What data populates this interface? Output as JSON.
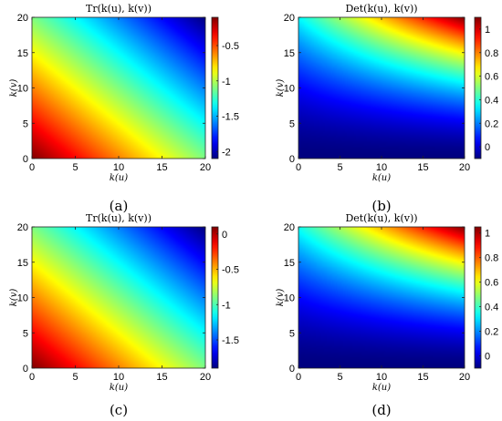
{
  "chart_data": [
    {
      "type": "heatmap",
      "panel": "a",
      "caption": "(a)",
      "title": "Tr(k(u), k(v))",
      "xlabel": "k(u)",
      "ylabel": "k(v)",
      "xlim": [
        0,
        20
      ],
      "ylim": [
        0,
        20
      ],
      "xticks": [
        "0",
        "5",
        "10",
        "15",
        "20"
      ],
      "yticks": [
        "0",
        "5",
        "10",
        "15",
        "20"
      ],
      "colormap": "jet",
      "clim": [
        -2.1,
        -0.1
      ],
      "colorbar_ticks": [
        "-0.5",
        "-1",
        "-1.5",
        "-2"
      ],
      "colorbar_tick_values": [
        -0.5,
        -1,
        -1.5,
        -2
      ],
      "corner_values": {
        "x0_y0": -0.1,
        "x20_y0": -1.1,
        "x0_y20": -1.1,
        "x20_y20": -2.1
      }
    },
    {
      "type": "heatmap",
      "panel": "b",
      "caption": "(b)",
      "title": "Det(k(u), k(v))",
      "xlabel": "k(u)",
      "ylabel": "k(v)",
      "xlim": [
        0,
        20
      ],
      "ylim": [
        0,
        20
      ],
      "xticks": [
        "0",
        "5",
        "10",
        "15",
        "20"
      ],
      "yticks": [
        "0",
        "5",
        "10",
        "15",
        "20"
      ],
      "colormap": "jet",
      "clim": [
        -0.1,
        1.1
      ],
      "colorbar_ticks": [
        "1",
        "0.8",
        "0.6",
        "0.4",
        "0.2",
        "0"
      ],
      "colorbar_tick_values": [
        1,
        0.8,
        0.6,
        0.4,
        0.2,
        0
      ],
      "corner_values": {
        "x0_y0": -0.1,
        "x20_y0": -0.1,
        "x0_y20": 0.35,
        "x20_y20": 1.1
      }
    },
    {
      "type": "heatmap",
      "panel": "c",
      "caption": "(c)",
      "title": "Tr(k(u), k(v))",
      "xlabel": "k(u)",
      "ylabel": "k(v)",
      "xlim": [
        0,
        20
      ],
      "ylim": [
        0,
        20
      ],
      "xticks": [
        "0",
        "5",
        "10",
        "15",
        "20"
      ],
      "yticks": [
        "0",
        "5",
        "10",
        "15",
        "20"
      ],
      "colormap": "jet",
      "clim": [
        -1.9,
        0.1
      ],
      "colorbar_ticks": [
        "0",
        "-0.5",
        "-1",
        "-1.5"
      ],
      "colorbar_tick_values": [
        0,
        -0.5,
        -1,
        -1.5
      ],
      "corner_values": {
        "x0_y0": 0.1,
        "x20_y0": -0.9,
        "x0_y20": -0.9,
        "x20_y20": -1.9
      }
    },
    {
      "type": "heatmap",
      "panel": "d",
      "caption": "(d)",
      "title": "Det(k(u), k(v))",
      "xlabel": "k(u)",
      "ylabel": "k(v)",
      "xlim": [
        0,
        20
      ],
      "ylim": [
        0,
        20
      ],
      "xticks": [
        "0",
        "5",
        "10",
        "15",
        "20"
      ],
      "yticks": [
        "0",
        "5",
        "10",
        "15",
        "20"
      ],
      "colormap": "jet",
      "clim": [
        -0.1,
        1.05
      ],
      "colorbar_ticks": [
        "1",
        "0.8",
        "0.6",
        "0.4",
        "0.2",
        "0"
      ],
      "colorbar_tick_values": [
        1,
        0.8,
        0.6,
        0.4,
        0.2,
        0
      ],
      "corner_values": {
        "x0_y0": -0.1,
        "x20_y0": -0.1,
        "x0_y20": 0.35,
        "x20_y20": 1.05
      }
    }
  ]
}
